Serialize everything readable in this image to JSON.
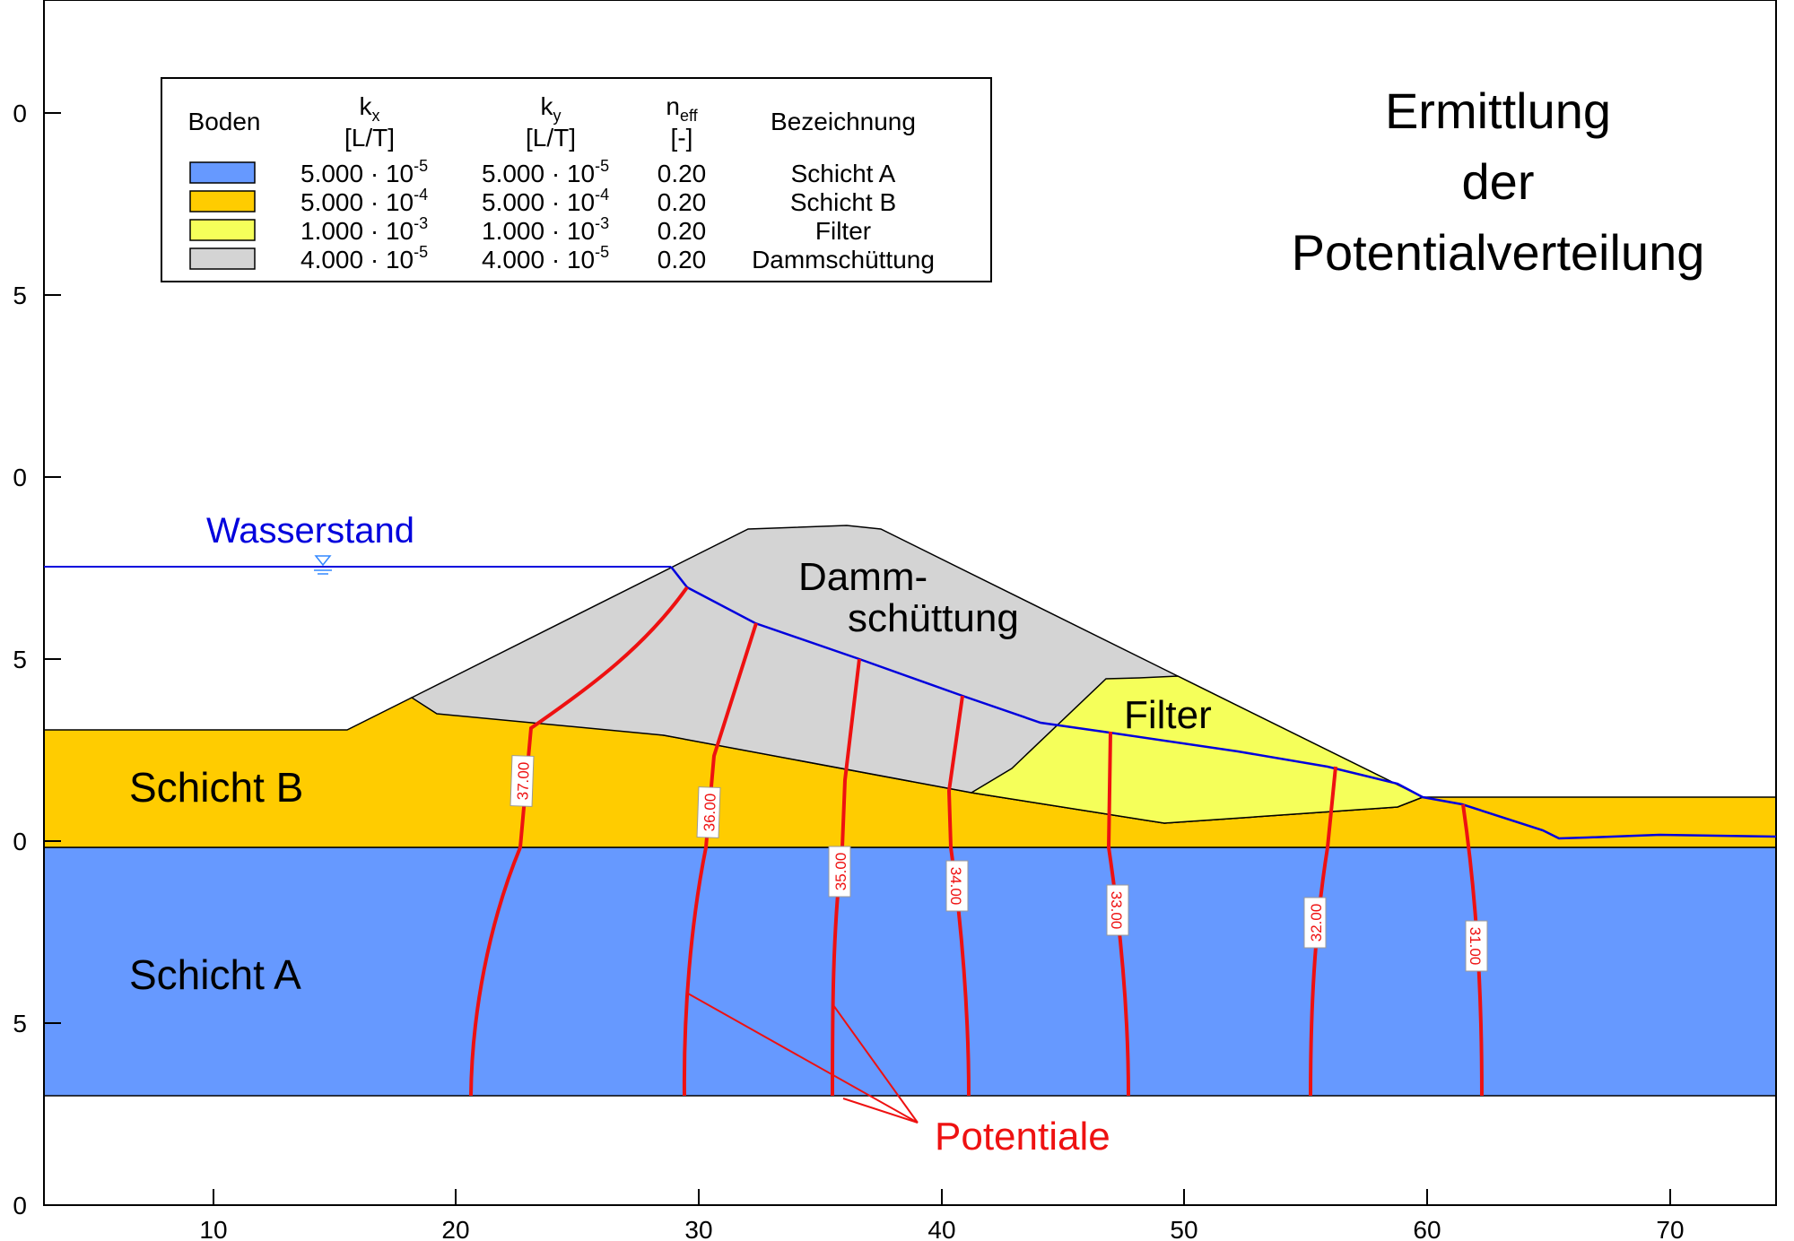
{
  "title": [
    "Ermittlung",
    "der",
    "Potentialverteilung"
  ],
  "axes": {
    "x_ticks": [
      "10",
      "20",
      "30",
      "40",
      "50",
      "60",
      "70"
    ],
    "y_ticks": [
      "0",
      "5",
      "0",
      "5",
      "0",
      "5",
      "0"
    ]
  },
  "legend": {
    "headers": {
      "soil": "Boden",
      "kx": "k",
      "kx_sub": "x",
      "kx_unit": "[L/T]",
      "ky": "k",
      "ky_sub": "y",
      "ky_unit": "[L/T]",
      "neff": "n",
      "neff_sub": "eff",
      "neff_unit": "[-]",
      "name": "Bezeichnung"
    },
    "rows": [
      {
        "color": "#6699ff",
        "kx": "5.000 · 10",
        "kx_exp": "-5",
        "ky": "5.000 · 10",
        "ky_exp": "-5",
        "neff": "0.20",
        "name": "Schicht A"
      },
      {
        "color": "#ffcc00",
        "kx": "5.000 · 10",
        "kx_exp": "-4",
        "ky": "5.000 · 10",
        "ky_exp": "-4",
        "neff": "0.20",
        "name": "Schicht B"
      },
      {
        "color": "#f5ff5a",
        "kx": "1.000 · 10",
        "kx_exp": "-3",
        "ky": "1.000 · 10",
        "ky_exp": "-3",
        "neff": "0.20",
        "name": "Filter"
      },
      {
        "color": "#d4d4d4",
        "kx": "4.000 · 10",
        "kx_exp": "-5",
        "ky": "4.000 · 10",
        "ky_exp": "-5",
        "neff": "0.20",
        "name": "Dammschüttung"
      }
    ]
  },
  "labels": {
    "water_level": "Wasserstand",
    "dam_line1": "Damm-",
    "dam_line2": "schüttung",
    "filter": "Filter",
    "layer_b": "Schicht B",
    "layer_a": "Schicht A",
    "potentials": "Potentiale"
  },
  "colors": {
    "schicht_a": "#6699ff",
    "schicht_b": "#ffcc00",
    "filter": "#f5ff5a",
    "damm": "#d4d4d4",
    "water": "#0000dd",
    "potential": "#ee1111"
  },
  "equipotentials": [
    "37.00",
    "36.00",
    "35.00",
    "34.00",
    "33.00",
    "32.00",
    "31.00"
  ]
}
